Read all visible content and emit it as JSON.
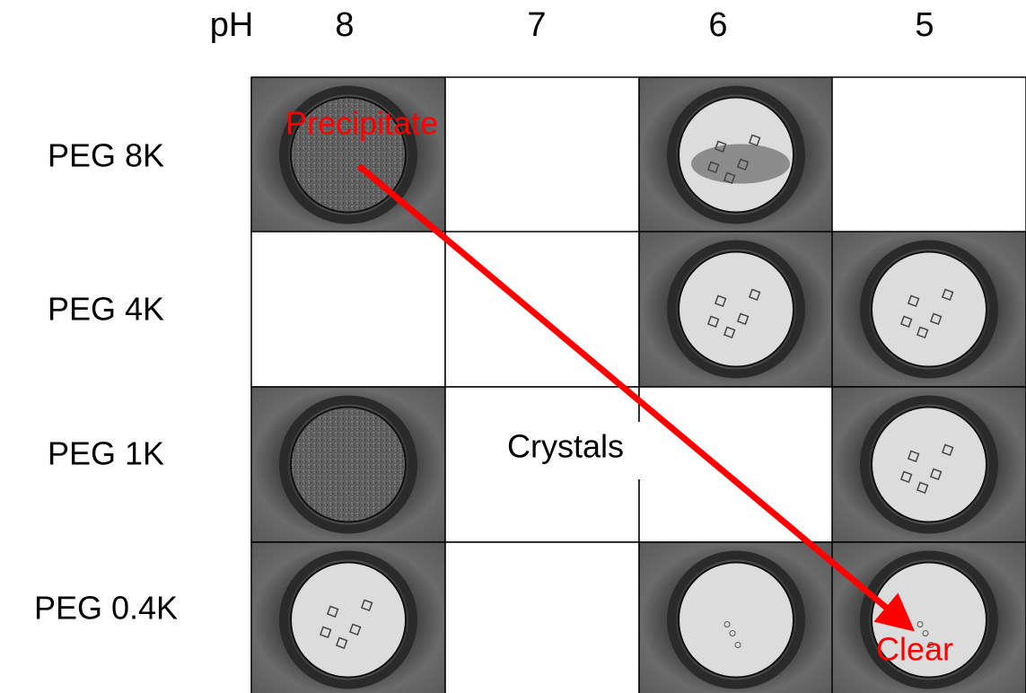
{
  "header": {
    "axis_label": "pH",
    "columns": [
      "8",
      "7",
      "6",
      "5"
    ]
  },
  "rows": [
    "PEG 8K",
    "PEG 4K",
    "PEG 1K",
    "PEG 0.4K"
  ],
  "annotations": {
    "precipitate": "Precipitate",
    "crystals": "Crystals",
    "clear": "Clear"
  }
}
